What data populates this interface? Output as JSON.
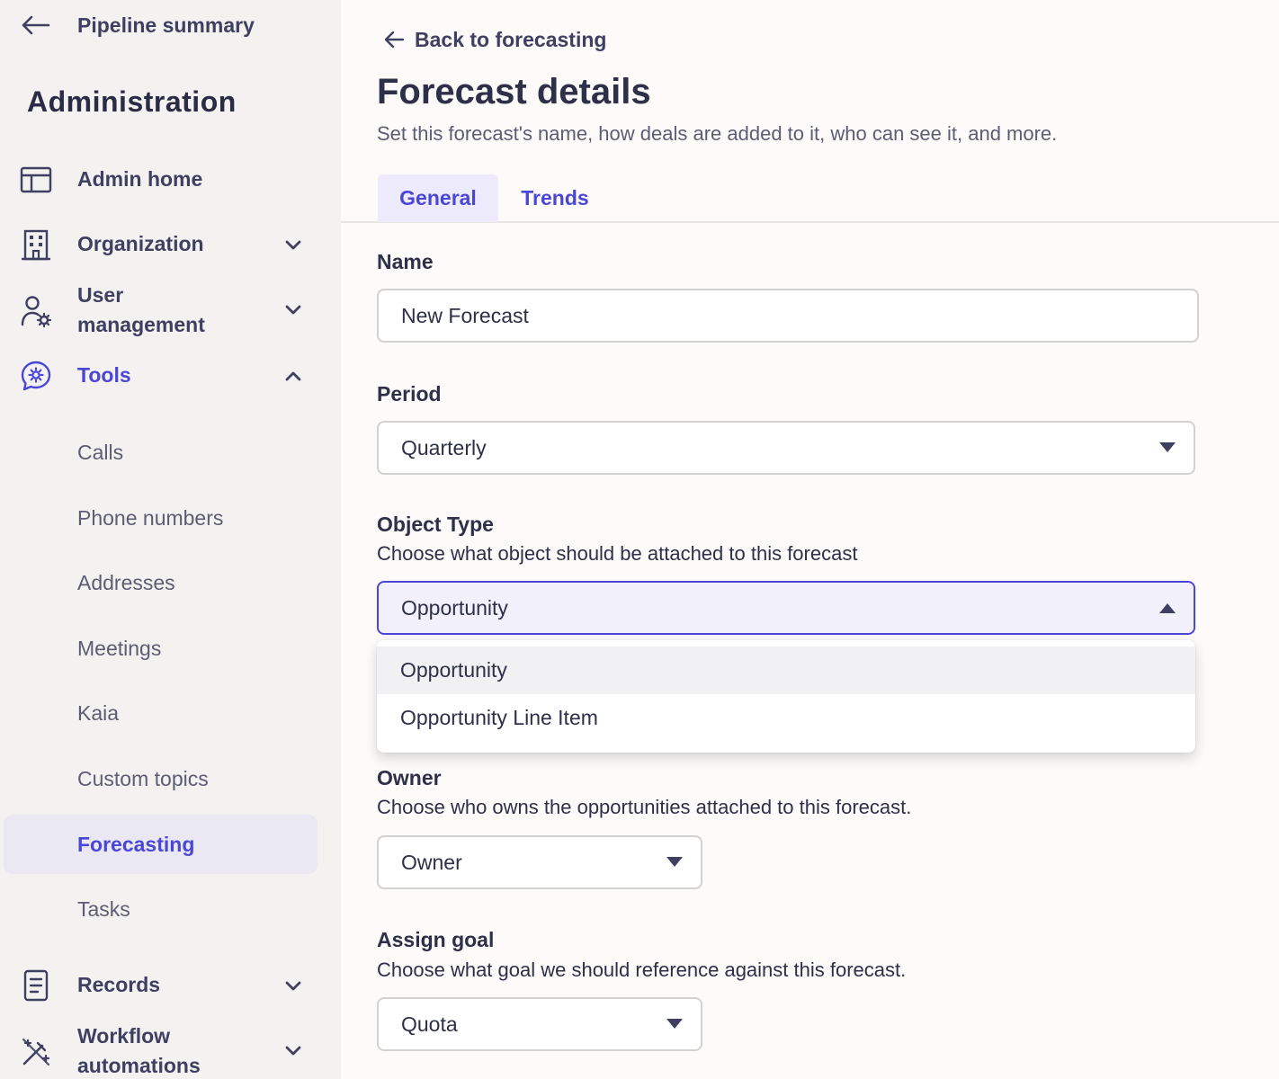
{
  "sidebar": {
    "back_label": "Pipeline summary",
    "title": "Administration",
    "nav": [
      {
        "label": "Admin home",
        "icon": "layout-icon"
      },
      {
        "label": "Organization",
        "icon": "building-icon"
      },
      {
        "label": "User",
        "label2": "management",
        "icon": "user-gear-icon"
      },
      {
        "label": "Tools",
        "icon": "tools-gear-icon"
      },
      {
        "label": "Records",
        "icon": "records-icon"
      },
      {
        "label": "Workflow",
        "label2": "automations",
        "icon": "wand-icon"
      }
    ],
    "tools_subitems": [
      "Calls",
      "Phone numbers",
      "Addresses",
      "Meetings",
      "Kaia",
      "Custom topics",
      "Forecasting",
      "Tasks"
    ],
    "accent_color": "#4b47d6"
  },
  "main": {
    "back_link": "Back to forecasting",
    "title": "Forecast details",
    "subtitle": "Set this forecast's name, how deals are added to it, who can see it, and more.",
    "tabs": [
      "General",
      "Trends"
    ],
    "name": {
      "label": "Name",
      "value": "New Forecast"
    },
    "period": {
      "label": "Period",
      "value": "Quarterly"
    },
    "object_type": {
      "label": "Object Type",
      "help": "Choose what object should be attached to this forecast",
      "value": "Opportunity",
      "options": [
        "Opportunity",
        "Opportunity Line Item"
      ]
    },
    "owner": {
      "label": "Owner",
      "help": "Choose who owns the opportunities attached to this forecast.",
      "value": "Owner"
    },
    "goal": {
      "label": "Assign goal",
      "help": "Choose what goal we should reference against this forecast.",
      "value": "Quota"
    }
  }
}
